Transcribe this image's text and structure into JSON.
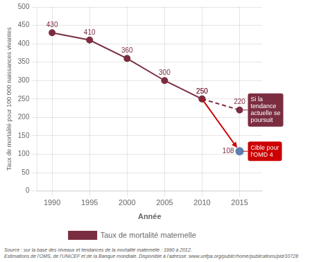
{
  "chart_data": {
    "type": "line",
    "x_label": "Année",
    "y_label": "Taux de mortalité pour 100 000 naissances vivantes",
    "xlim": [
      1988,
      2018
    ],
    "xticks": [
      1990,
      1995,
      2000,
      2005,
      2010,
      2015
    ],
    "ylim": [
      0,
      500
    ],
    "yticks": [
      0,
      50,
      100,
      150,
      200,
      250,
      300,
      350,
      400,
      450,
      500
    ],
    "grid": true,
    "legend": "bottom",
    "series": [
      {
        "name": "Taux de mortalité maternelle",
        "color": "#7b2d40",
        "marker": "circle",
        "line_style": "solid",
        "x": [
          1990,
          1995,
          2000,
          2005,
          2010
        ],
        "values": [
          430,
          410,
          360,
          300,
          250
        ],
        "data_labels": true
      },
      {
        "color": "#7b2d40",
        "marker": "circle",
        "line_style": "dashed",
        "x": [
          2010,
          2015
        ],
        "values": [
          250,
          220
        ],
        "data_labels": true
      },
      {
        "type": "scatter",
        "color": "#5b7fae",
        "marker": "circle",
        "x": [
          2015
        ],
        "values": [
          108
        ],
        "data_labels": true
      }
    ],
    "annotations": [
      {
        "type": "arrow",
        "x": [
          2010,
          2015
        ],
        "y": [
          250,
          108
        ],
        "color": "#cc0000"
      },
      {
        "type": "callout",
        "text": "Si la\ntendance\nactuelle se\npoursuit",
        "x": 2015,
        "y": 220,
        "color": "#7b2d40"
      },
      {
        "type": "callout",
        "text": "Cible pour\nl'OMD 4",
        "x": 2015,
        "y": 108,
        "color": "#cc0000"
      }
    ],
    "source": [
      "Source : sur la base des niveaux et tendances de la mortalité maternelle : 1990 à 2012.",
      "Estimations de l'OMS, de l'UNICEF et de la Banque mondiale. Disponible à l'adresse :www.unfpa.org/public/home/publications/pid/10728"
    ]
  }
}
